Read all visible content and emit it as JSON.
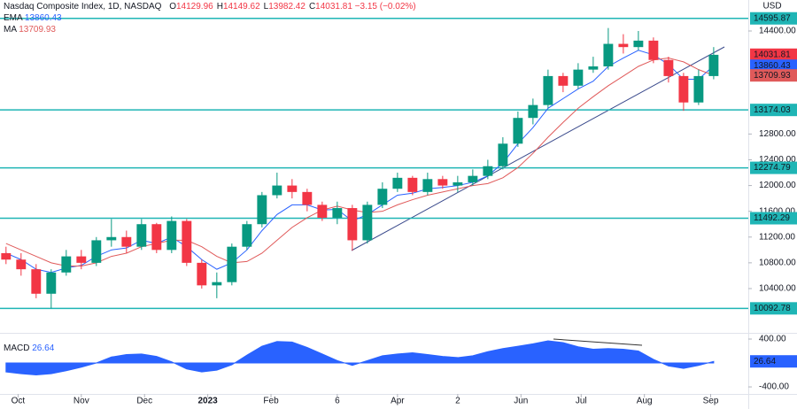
{
  "header": {
    "title": "Nasdaq Composite Index, 1D, NASDAQ",
    "currency": "USD",
    "ohlc": [
      {
        "label": "O",
        "value": 14129.96
      },
      {
        "label": "H",
        "value": 14149.62
      },
      {
        "label": "L",
        "value": 13982.42
      },
      {
        "label": "C",
        "value": 14031.81
      }
    ],
    "change": "−3.15 (−0.02%)"
  },
  "chart_data": [
    {
      "type": "candlestick",
      "x": [
        2,
        7,
        12,
        17,
        22,
        27,
        32,
        37,
        42,
        47,
        52,
        57,
        62,
        67,
        72,
        77,
        82,
        87,
        92,
        97,
        102,
        107,
        112,
        117,
        122,
        127,
        132,
        137,
        142,
        147,
        152,
        157,
        162,
        167,
        172,
        177,
        182,
        187,
        192,
        197,
        202,
        207,
        212,
        217,
        222,
        227,
        232,
        237
      ],
      "open": [
        10950,
        10850,
        10700,
        10320,
        10650,
        10900,
        10800,
        11150,
        11200,
        11050,
        11400,
        11000,
        11450,
        10800,
        10450,
        10500,
        11050,
        11400,
        11850,
        12000,
        11900,
        11700,
        11500,
        11650,
        11150,
        11700,
        11950,
        12120,
        11900,
        12100,
        12000,
        12050,
        12150,
        12300,
        12650,
        13050,
        13250,
        13700,
        13550,
        13800,
        13850,
        14200,
        14150,
        14250,
        13950,
        13700,
        13290,
        13700
      ],
      "high": [
        11050,
        10950,
        10780,
        10700,
        11000,
        11000,
        11200,
        11480,
        11300,
        11480,
        11420,
        11520,
        11480,
        10850,
        10650,
        11100,
        11450,
        11900,
        12200,
        12100,
        11950,
        11750,
        11750,
        11700,
        11750,
        12050,
        12200,
        12150,
        12200,
        12150,
        12150,
        12250,
        12400,
        12750,
        13150,
        13350,
        13800,
        13750,
        13900,
        14000,
        14446,
        14350,
        14400,
        14300,
        14000,
        13750,
        13800,
        14150
      ],
      "low": [
        10780,
        10600,
        10250,
        10093,
        10600,
        10700,
        10750,
        11050,
        10950,
        11000,
        10950,
        10950,
        10750,
        10400,
        10250,
        10450,
        11000,
        11350,
        11800,
        11800,
        11600,
        11450,
        11400,
        10990,
        11100,
        11650,
        11900,
        11850,
        11850,
        11950,
        11900,
        12000,
        12100,
        12250,
        12600,
        12950,
        13200,
        13450,
        13500,
        13750,
        13800,
        14050,
        14100,
        13900,
        13600,
        13160,
        13250,
        13650
      ],
      "close": [
        10850,
        10700,
        10320,
        10650,
        10900,
        10800,
        11150,
        11200,
        11050,
        11400,
        11000,
        11450,
        10800,
        10450,
        10500,
        11050,
        11400,
        11850,
        12000,
        11900,
        11700,
        11500,
        11650,
        11150,
        11700,
        11950,
        12120,
        11900,
        12100,
        12000,
        12050,
        12150,
        12300,
        12650,
        13050,
        13250,
        13700,
        13550,
        13800,
        13850,
        14200,
        14150,
        14250,
        13950,
        13700,
        13290,
        13700,
        14030
      ],
      "up_color": "#089981",
      "down_color": "#f23645",
      "series": [
        {
          "name": "EMA",
          "color": "#2962ff",
          "values": [
            10950,
            10850,
            10700,
            10650,
            10720,
            10760,
            10900,
            11000,
            11030,
            11150,
            11100,
            11200,
            11050,
            10850,
            10700,
            10800,
            11000,
            11300,
            11550,
            11700,
            11700,
            11620,
            11630,
            11450,
            11550,
            11700,
            11850,
            11880,
            11950,
            11970,
            12000,
            12050,
            12150,
            12350,
            12650,
            12900,
            13200,
            13350,
            13500,
            13620,
            13850,
            13980,
            14100,
            14030,
            13880,
            13650,
            13650,
            13860.43
          ]
        },
        {
          "name": "MA",
          "color": "#e05a5a",
          "values": [
            11100,
            11000,
            10900,
            10800,
            10750,
            10750,
            10800,
            10900,
            10950,
            11050,
            11100,
            11150,
            11150,
            11050,
            10900,
            10800,
            10820,
            10950,
            11150,
            11350,
            11500,
            11620,
            11680,
            11620,
            11580,
            11600,
            11700,
            11780,
            11850,
            11900,
            11950,
            12000,
            12030,
            12120,
            12280,
            12500,
            12750,
            12980,
            13200,
            13380,
            13550,
            13700,
            13850,
            13950,
            13980,
            13920,
            13800,
            13709.93
          ]
        }
      ],
      "levels": [
        14595.87,
        13174.03,
        12274.79,
        11492.29,
        10092.78
      ],
      "level_color": "#1fb5b5",
      "xlim": [
        0,
        248.5
      ],
      "xticks": [
        {
          "value": 6,
          "label": "Oct"
        },
        {
          "value": 27,
          "label": "Nov"
        },
        {
          "value": 48,
          "label": "Dec"
        },
        {
          "value": 69,
          "label": "2023"
        },
        {
          "value": 90,
          "label": "Feb"
        },
        {
          "value": 112,
          "label": "6"
        },
        {
          "value": 132,
          "label": "Apr"
        },
        {
          "value": 152,
          "label": "2"
        },
        {
          "value": 173,
          "label": "Jun"
        },
        {
          "value": 193,
          "label": "Jul"
        },
        {
          "value": 214,
          "label": "Aug"
        },
        {
          "value": 236,
          "label": "Sep"
        }
      ],
      "ylim": [
        9726,
        14881
      ],
      "yticks": [
        {
          "value": 10400,
          "label": "10400.00"
        },
        {
          "value": 10800,
          "label": "10800.00"
        },
        {
          "value": 11200,
          "label": "11200.00"
        },
        {
          "value": 11600,
          "label": "11600.00"
        },
        {
          "value": 12000,
          "label": "12000.00"
        },
        {
          "value": 12400,
          "label": "12400.00"
        },
        {
          "value": 12800,
          "label": "12800.00"
        },
        {
          "value": 14400,
          "label": "14400.00"
        }
      ]
    },
    {
      "type": "area",
      "series": [
        {
          "name": "MACD",
          "color": "#2962ff",
          "values": [
            -150,
            -180,
            -200,
            -180,
            -130,
            -70,
            0,
            100,
            140,
            150,
            110,
            20,
            -100,
            -150,
            -120,
            -30,
            130,
            280,
            360,
            350,
            260,
            150,
            40,
            -40,
            40,
            120,
            150,
            170,
            140,
            110,
            90,
            120,
            190,
            240,
            280,
            320,
            370,
            340,
            270,
            230,
            240,
            230,
            200,
            60,
            -50,
            -90,
            -40,
            26.64
          ]
        }
      ],
      "ylim": [
        -518,
        474
      ],
      "yticks": [
        {
          "value": 400,
          "label": "400.00"
        },
        {
          "value": -400,
          "label": "-400.00"
        }
      ]
    }
  ]
}
